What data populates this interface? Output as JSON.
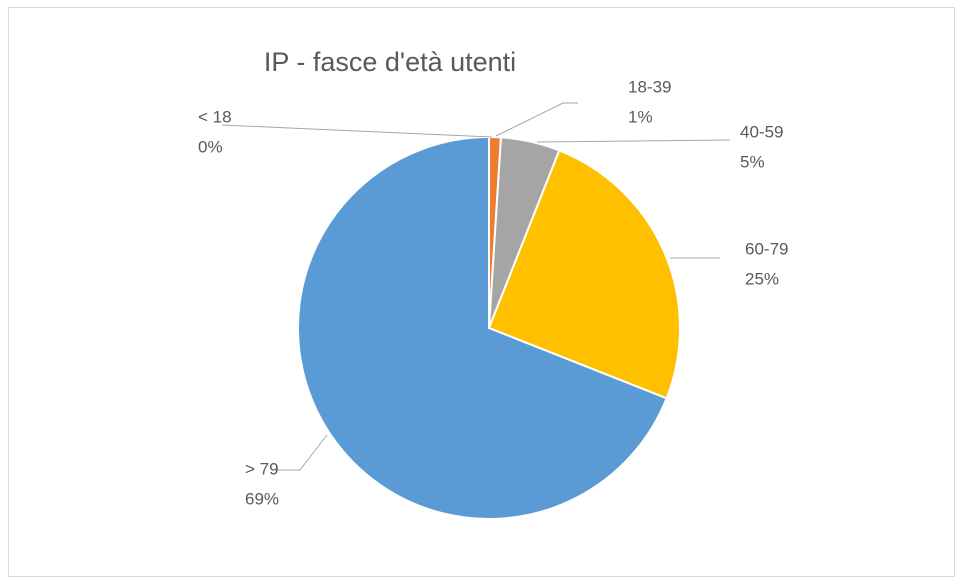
{
  "chart_data": {
    "type": "pie",
    "title": "IP - fasce d'età utenti",
    "categories": [
      "< 18",
      "18-39",
      "40-59",
      "60-79",
      "> 79"
    ],
    "values": [
      0,
      1,
      5,
      25,
      69
    ],
    "value_labels": [
      "0%",
      "1%",
      "5%",
      "25%",
      "69%"
    ],
    "colors": [
      "#4472c4",
      "#ed7d31",
      "#a5a5a5",
      "#ffc000",
      "#5b9bd5"
    ]
  }
}
